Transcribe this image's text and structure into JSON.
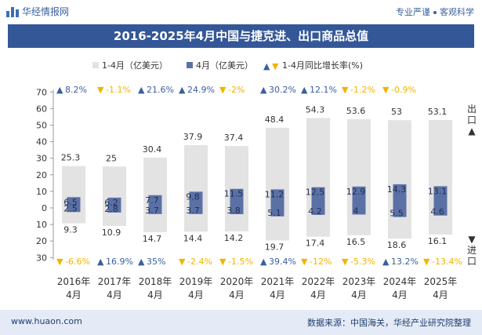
{
  "header": {
    "logo_text": "华经情报网",
    "tagline_left": "专业严谨",
    "tagline_right": "客观科学",
    "title": "2016-2025年4月中国与捷克进、出口商品总值"
  },
  "side_labels": {
    "top": "出口",
    "bottom": "进口"
  },
  "footer": {
    "url": "www.huaon.com",
    "source": "数据来源：中国海关，华经产业研究院整理"
  },
  "colors": {
    "cumulative": "#e3e3e3",
    "april": "#5b71a6",
    "up": "#3a5f9e",
    "down": "#f2b400"
  },
  "chart_data": {
    "type": "bar",
    "categories": [
      "2016年\n4月",
      "2017年\n4月",
      "2018年\n4月",
      "2019年\n4月",
      "2020年\n4月",
      "2021年\n4月",
      "2022年\n4月",
      "2023年\n4月",
      "2024年\n4月",
      "2025年\n4月"
    ],
    "legend": [
      "1-4月（亿美元）",
      "4月（亿美元）",
      "1-4月同比增长率(%)"
    ],
    "export": {
      "cumulative": [
        25.3,
        25,
        30.4,
        37.9,
        37.4,
        48.4,
        54.3,
        53.6,
        53,
        53.1
      ],
      "april": [
        6.5,
        6.2,
        7.7,
        9.8,
        11.5,
        11.2,
        12.5,
        12.9,
        14.3,
        13.1
      ],
      "yoy": [
        8.2,
        -1.1,
        21.6,
        24.9,
        -2,
        30.2,
        12.1,
        -1.2,
        -0.9,
        null
      ],
      "yoy_labels": [
        "8.2%",
        "-1.1%",
        "21.6%",
        "24.9%",
        "-2%",
        "30.2%",
        "12.1%",
        "-1.2%",
        "-0.9%",
        ""
      ]
    },
    "import": {
      "cumulative": [
        9.3,
        10.9,
        14.7,
        14.4,
        14.2,
        19.7,
        17.4,
        16.5,
        18.6,
        16.1
      ],
      "april": [
        2.5,
        2.8,
        3.7,
        3.7,
        3.8,
        5.1,
        4.2,
        4,
        5.5,
        4.6
      ],
      "yoy": [
        -6.6,
        16.9,
        35,
        -2.4,
        -1.5,
        39.4,
        -12,
        -5.3,
        13.2,
        -13.4
      ],
      "yoy_labels": [
        "-6.6%",
        "16.9%",
        "35%",
        "-2.4%",
        "-1.5%",
        "39.4%",
        "-12%",
        "-5.3%",
        "13.2%",
        "-13.4%"
      ]
    },
    "y_ticks_top": [
      "70",
      "60",
      "50",
      "40",
      "30",
      "20",
      "10",
      "0"
    ],
    "y_ticks_bottom": [
      "10",
      "20",
      "30"
    ],
    "ylim_export": [
      0,
      70
    ],
    "ylim_import": [
      0,
      30
    ],
    "grid": false,
    "legend_position": "top"
  }
}
